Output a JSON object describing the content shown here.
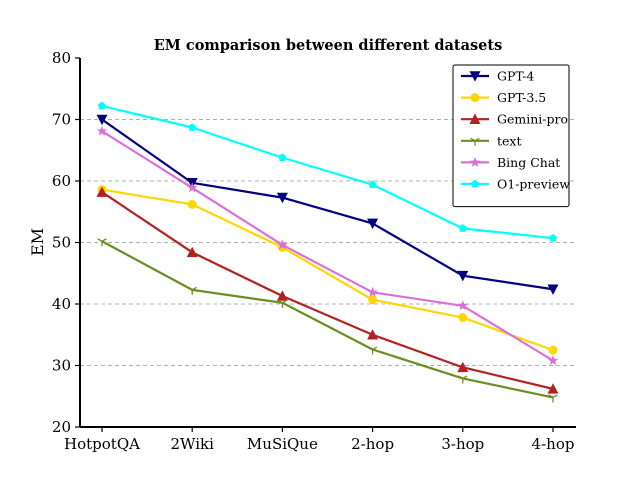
{
  "chart_data": {
    "type": "line",
    "title": "EM comparison between different datasets",
    "xlabel": "",
    "ylabel": "EM",
    "categories": [
      "HotpotQA",
      "2Wiki",
      "MuSiQue",
      "2-hop",
      "3-hop",
      "4-hop"
    ],
    "ylim": [
      20,
      80
    ],
    "yticks": [
      20,
      30,
      40,
      50,
      60,
      70,
      80
    ],
    "grid": "horizontal dashed",
    "legend_position": "top-right",
    "series": [
      {
        "name": "GPT-4",
        "color": "#000080",
        "marker": "triangle-down",
        "values": [
          70.0,
          59.7,
          57.3,
          53.1,
          44.6,
          42.4
        ]
      },
      {
        "name": "GPT-3.5",
        "color": "#FFD700",
        "marker": "circle",
        "values": [
          58.6,
          56.2,
          49.2,
          40.7,
          37.8,
          32.5
        ]
      },
      {
        "name": "Gemini-pro",
        "color": "#B22222",
        "marker": "triangle-up",
        "values": [
          58.2,
          48.4,
          41.3,
          35.0,
          29.7,
          26.2
        ]
      },
      {
        "name": "text",
        "color": "#6B8E23",
        "marker": "tri-down",
        "values": [
          50.2,
          42.3,
          40.2,
          32.6,
          27.9,
          24.8
        ]
      },
      {
        "name": "Bing Chat",
        "color": "#DA70D6",
        "marker": "star",
        "values": [
          68.1,
          58.9,
          49.6,
          41.9,
          39.7,
          30.8
        ]
      },
      {
        "name": "O1-preview",
        "color": "#00FFFF",
        "marker": "pentagon",
        "values": [
          72.2,
          68.7,
          63.8,
          59.4,
          52.3,
          50.7
        ]
      }
    ]
  }
}
